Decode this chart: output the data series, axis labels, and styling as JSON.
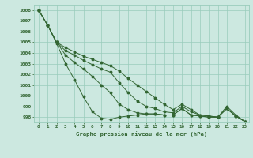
{
  "title": "Graphe pression niveau de la mer (hPa)",
  "hours": [
    0,
    1,
    2,
    3,
    4,
    5,
    6,
    7,
    8,
    9,
    10,
    11,
    12,
    13,
    14,
    15,
    16,
    17,
    18,
    19,
    20,
    21,
    22,
    23
  ],
  "line1": [
    1008,
    1006.6,
    1004.9,
    1003.0,
    1001.5,
    999.9,
    998.5,
    997.9,
    997.8,
    998.0,
    998.1,
    998.2,
    998.3,
    998.3,
    998.2,
    998.2,
    998.8,
    998.2,
    998.1,
    998.0,
    998.0,
    998.8,
    998.1,
    997.6
  ],
  "line2": [
    1008,
    1006.6,
    1005.0,
    1003.8,
    1003.1,
    1002.5,
    1001.8,
    1001.0,
    1000.3,
    999.2,
    998.7,
    998.4,
    998.3,
    998.3,
    998.2,
    998.2,
    998.8,
    998.2,
    998.1,
    998.0,
    998.0,
    998.8,
    998.1,
    997.6
  ],
  "line3": [
    1008,
    1006.6,
    1005.0,
    1004.2,
    1003.8,
    1003.3,
    1002.9,
    1002.5,
    1002.2,
    1001.2,
    1000.3,
    999.5,
    999.0,
    998.8,
    998.5,
    998.4,
    999.0,
    998.5,
    998.2,
    998.1,
    998.0,
    998.8,
    998.1,
    997.6
  ],
  "line4": [
    1008,
    1006.6,
    1005.0,
    1004.5,
    1004.1,
    1003.7,
    1003.4,
    1003.1,
    1002.8,
    1002.3,
    1001.6,
    1001.0,
    1000.4,
    999.8,
    999.2,
    998.7,
    999.2,
    998.7,
    998.2,
    998.1,
    998.0,
    999.0,
    998.2,
    997.6
  ],
  "bg_color": "#cce8e0",
  "grid_color": "#99ccbb",
  "line_color": "#336633",
  "ylim_min": 997.5,
  "ylim_max": 1008.5,
  "yticks": [
    998,
    999,
    1000,
    1001,
    1002,
    1003,
    1004,
    1005,
    1006,
    1007,
    1008
  ]
}
